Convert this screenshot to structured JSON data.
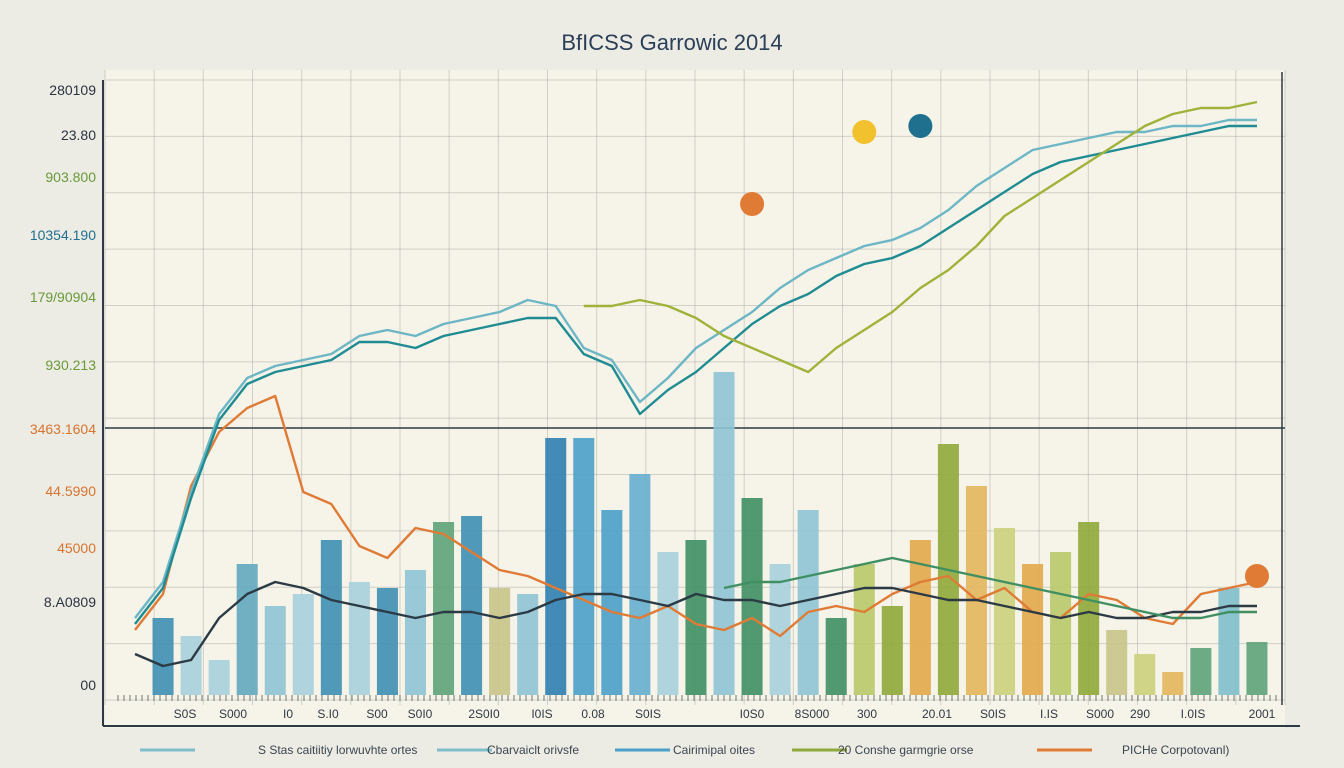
{
  "chart_data": {
    "type": "bar",
    "title": "BfICSS Garrowic 2014",
    "xlabel": "",
    "ylabel": "",
    "grid": true,
    "legend_position": "bottom",
    "y_tick_labels": [
      "280109",
      "23.80",
      "903.800",
      "10354.190",
      "179/90904",
      "930.213",
      "3463.1604",
      "44.5990",
      "45000",
      "8.A0809",
      "00"
    ],
    "y_tick_colors": [
      "#2a3440",
      "#2a3440",
      "#6a9a3a",
      "#1f6f8e",
      "#6a9a3a",
      "#6a9a3a",
      "#d8742f",
      "#d8742f",
      "#d8742f",
      "#2a3440",
      "#2a3440"
    ],
    "x_tick_labels": [
      "S0S",
      "S000",
      "I0",
      "S.I0",
      "S00",
      "S0I0",
      "2S0I0",
      "I0IS",
      "0.08",
      "S0IS",
      "I0S0",
      "8S000",
      "300",
      "20.01",
      "S0IS",
      "I.IS",
      "S000",
      "290",
      "I.0IS",
      "2001"
    ],
    "legend": [
      {
        "label": "S Stas caitiitiy lorwuvhte ortes",
        "color": "#7fbfcc"
      },
      {
        "label": "Cbarvaiclt orivsfe",
        "color": "#7fbfcc"
      },
      {
        "label": "Cairimipal oites",
        "color": "#4b9fc9"
      },
      {
        "label": "20 Conshe garmgrie orse",
        "color": "#8fa83a"
      },
      {
        "label": "PICHe Corpotovanl)",
        "color": "#e07b35"
      }
    ],
    "ylim": [
      0,
      100
    ],
    "bars": [
      {
        "x": 1,
        "value": 12,
        "color": "#3f8fb3"
      },
      {
        "x": 2,
        "value": 9,
        "color": "#a9d0db"
      },
      {
        "x": 3,
        "value": 5,
        "color": "#a9d0db"
      },
      {
        "x": 4,
        "value": 21,
        "color": "#63a9bf"
      },
      {
        "x": 5,
        "value": 14,
        "color": "#8fc4d4"
      },
      {
        "x": 6,
        "value": 16,
        "color": "#a9d0db"
      },
      {
        "x": 7,
        "value": 25,
        "color": "#3f8fb3"
      },
      {
        "x": 8,
        "value": 18,
        "color": "#a9d0db"
      },
      {
        "x": 9,
        "value": 17,
        "color": "#3f8fb3"
      },
      {
        "x": 10,
        "value": 20,
        "color": "#8fc4d4"
      },
      {
        "x": 11,
        "value": 28,
        "color": "#5ea37a"
      },
      {
        "x": 12,
        "value": 29,
        "color": "#3f8fb3"
      },
      {
        "x": 13,
        "value": 17,
        "color": "#c9c48a"
      },
      {
        "x": 14,
        "value": 16,
        "color": "#8fc4d4"
      },
      {
        "x": 15,
        "value": 42,
        "color": "#2e7fb0"
      },
      {
        "x": 16,
        "value": 42,
        "color": "#4b9fc9"
      },
      {
        "x": 17,
        "value": 30,
        "color": "#4b9fc9"
      },
      {
        "x": 18,
        "value": 36,
        "color": "#66aecf"
      },
      {
        "x": 19,
        "value": 23,
        "color": "#a9d0db"
      },
      {
        "x": 20,
        "value": 25,
        "color": "#3f8f63"
      },
      {
        "x": 21,
        "value": 53,
        "color": "#8fc4d4"
      },
      {
        "x": 22,
        "value": 32,
        "color": "#3f8f63"
      },
      {
        "x": 23,
        "value": 21,
        "color": "#a9d0db"
      },
      {
        "x": 24,
        "value": 30,
        "color": "#8fc4d4"
      },
      {
        "x": 25,
        "value": 12,
        "color": "#3f8f63"
      },
      {
        "x": 26,
        "value": 21,
        "color": "#b9c96a"
      },
      {
        "x": 27,
        "value": 14,
        "color": "#8fa83a"
      },
      {
        "x": 28,
        "value": 25,
        "color": "#e3a94a"
      },
      {
        "x": 29,
        "value": 41,
        "color": "#8fa83a"
      },
      {
        "x": 30,
        "value": 34,
        "color": "#e3b65c"
      },
      {
        "x": 31,
        "value": 27,
        "color": "#cbd07c"
      },
      {
        "x": 32,
        "value": 21,
        "color": "#e3a94a"
      },
      {
        "x": 33,
        "value": 23,
        "color": "#b9c96a"
      },
      {
        "x": 34,
        "value": 28,
        "color": "#8fa83a"
      },
      {
        "x": 35,
        "value": 10,
        "color": "#c9c48a"
      },
      {
        "x": 36,
        "value": 6,
        "color": "#cbd07c"
      },
      {
        "x": 37,
        "value": 3,
        "color": "#e3b65c"
      },
      {
        "x": 38,
        "value": 7,
        "color": "#5ea37a"
      },
      {
        "x": 39,
        "value": 17,
        "color": "#7fbfcc"
      },
      {
        "x": 40,
        "value": 8,
        "color": "#5ea37a"
      }
    ],
    "series": [
      {
        "color": "#e07b35",
        "values": [
          10,
          16,
          34,
          43,
          47,
          49,
          33,
          31,
          24,
          22,
          27,
          26,
          23,
          20,
          19,
          17,
          15,
          13,
          12,
          14,
          11,
          10,
          12,
          9,
          13,
          14,
          13,
          16,
          18,
          19,
          15,
          17,
          13,
          12,
          16,
          15,
          12,
          11,
          16,
          17,
          18
        ]
      },
      {
        "color": "#6cb6c6",
        "values": [
          12,
          18,
          33,
          46,
          52,
          54,
          55,
          56,
          59,
          60,
          59,
          61,
          62,
          63,
          65,
          64,
          57,
          55,
          48,
          52,
          57,
          60,
          63,
          67,
          70,
          72,
          74,
          75,
          77,
          80,
          84,
          87,
          90,
          91,
          92,
          93,
          93,
          94,
          94,
          95,
          95
        ]
      },
      {
        "color": "#1f8b92",
        "values": [
          11,
          17,
          32,
          45,
          51,
          53,
          54,
          55,
          58,
          58,
          57,
          59,
          60,
          61,
          62,
          62,
          56,
          54,
          46,
          50,
          53,
          57,
          61,
          64,
          66,
          69,
          71,
          72,
          74,
          77,
          80,
          83,
          86,
          88,
          89,
          90,
          91,
          92,
          93,
          94,
          94
        ]
      },
      {
        "color": "#9fb33a",
        "values": [
          null,
          null,
          null,
          null,
          null,
          null,
          null,
          null,
          null,
          null,
          null,
          null,
          null,
          null,
          null,
          null,
          64,
          64,
          65,
          64,
          62,
          59,
          57,
          55,
          53,
          57,
          60,
          63,
          67,
          70,
          74,
          79,
          82,
          85,
          88,
          91,
          94,
          96,
          97,
          97,
          98
        ]
      },
      {
        "color": "#2b3a44",
        "values": [
          6,
          4,
          5,
          12,
          16,
          18,
          17,
          15,
          14,
          13,
          12,
          13,
          13,
          12,
          13,
          15,
          16,
          16,
          15,
          14,
          16,
          15,
          15,
          14,
          15,
          16,
          17,
          17,
          16,
          15,
          15,
          14,
          13,
          12,
          13,
          12,
          12,
          13,
          13,
          14,
          14
        ]
      },
      {
        "color": "#3f8f63",
        "values": [
          null,
          null,
          null,
          null,
          null,
          null,
          null,
          null,
          null,
          null,
          null,
          null,
          null,
          null,
          null,
          null,
          null,
          null,
          null,
          null,
          null,
          17,
          18,
          18,
          19,
          20,
          21,
          22,
          21,
          20,
          19,
          18,
          17,
          16,
          15,
          14,
          13,
          12,
          12,
          13,
          13
        ]
      }
    ],
    "markers": [
      {
        "x": 22,
        "value": 81,
        "color": "#e07b35"
      },
      {
        "x": 26,
        "value": 93,
        "color": "#f2c12e"
      },
      {
        "x": 28,
        "value": 94,
        "color": "#1f6f8e"
      },
      {
        "x": 40,
        "value": 19,
        "color": "#e07b35"
      }
    ]
  }
}
